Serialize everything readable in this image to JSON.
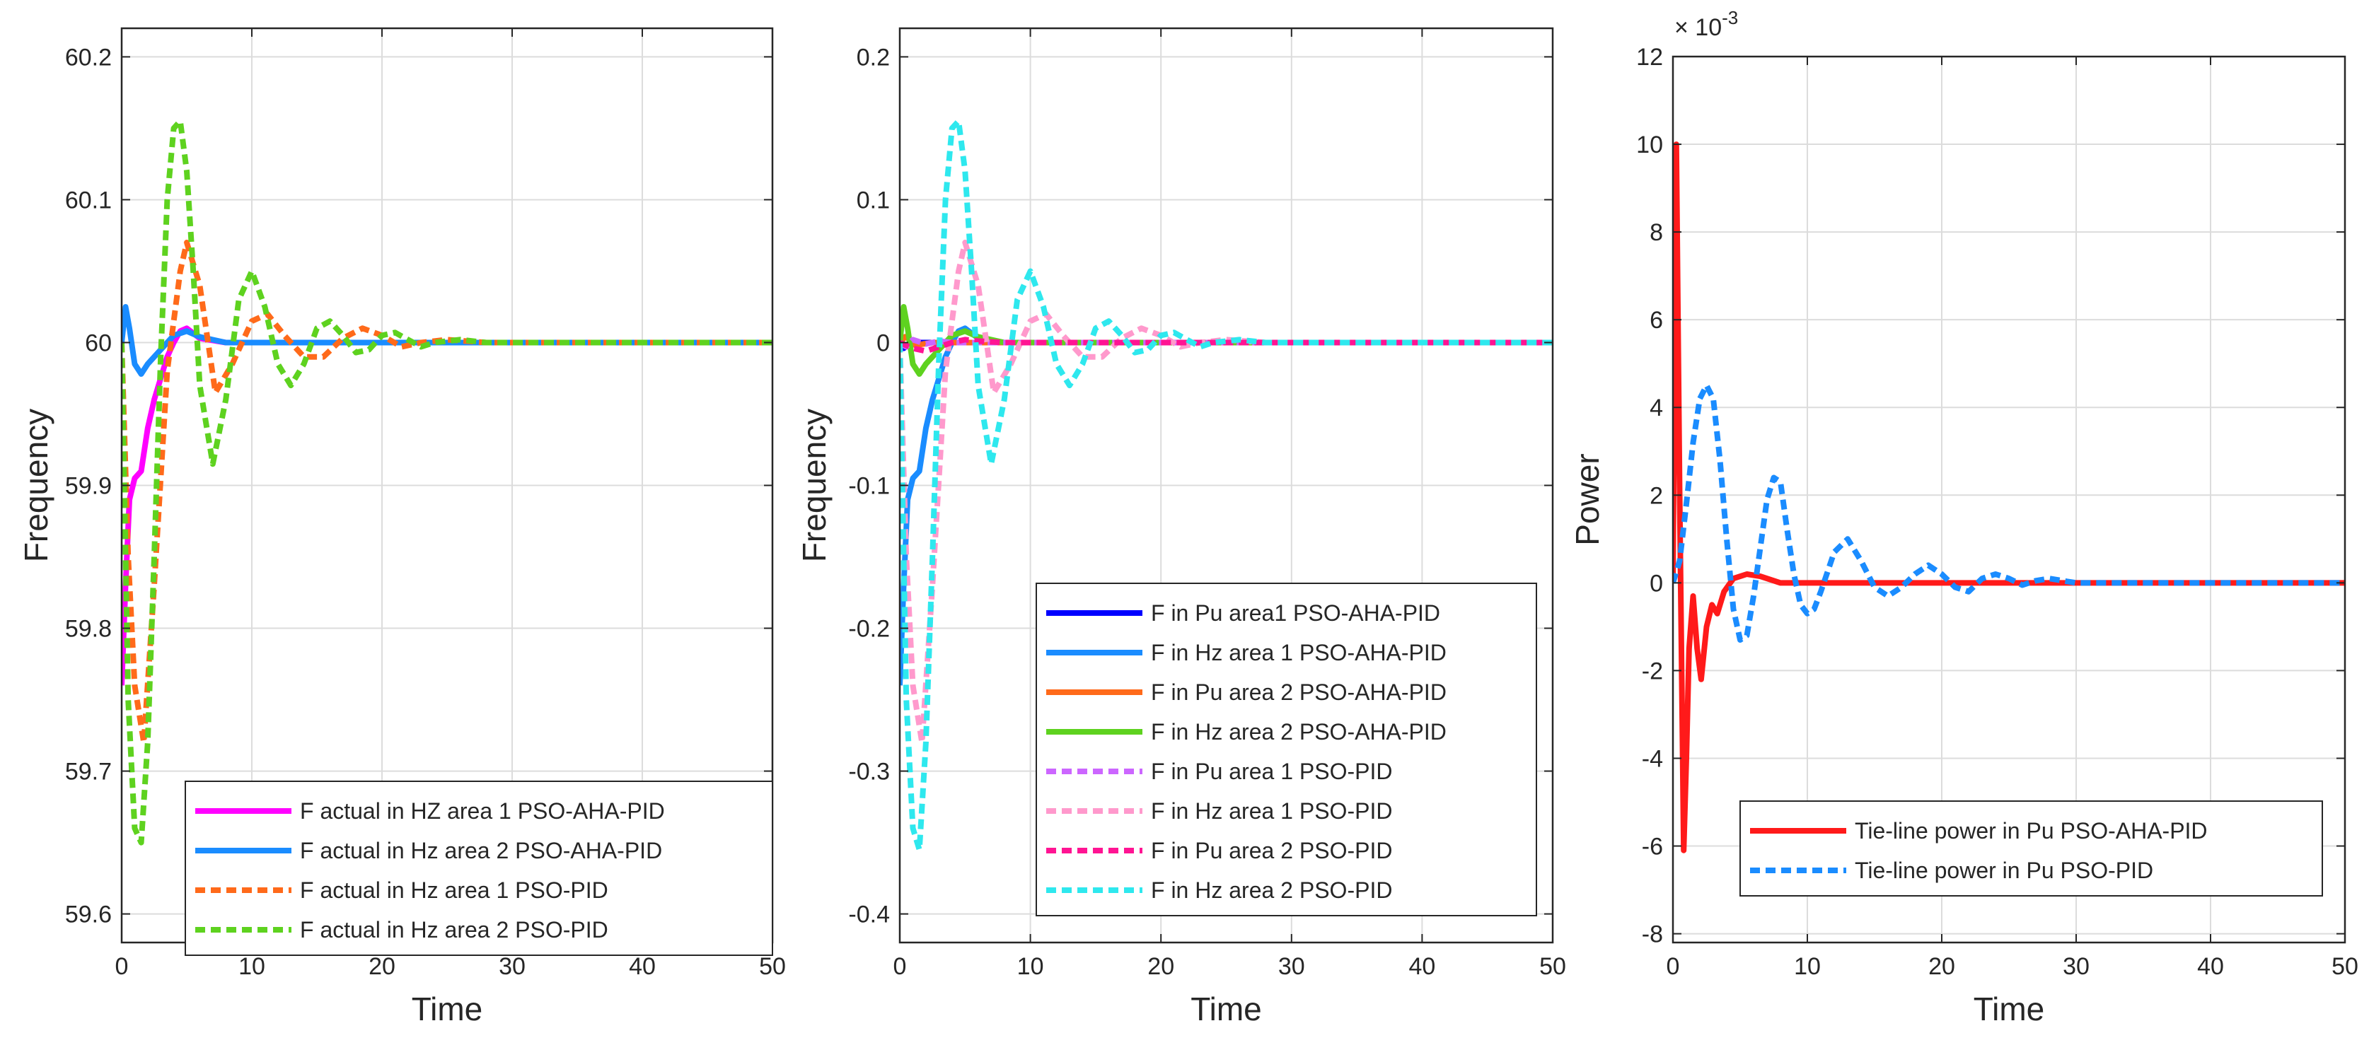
{
  "chart_data": [
    {
      "type": "line",
      "xlabel": "Time",
      "ylabel": "Frequency",
      "xlim": [
        0,
        50
      ],
      "ylim": [
        59.58,
        60.22
      ],
      "xticks": [
        0,
        10,
        20,
        30,
        40,
        50
      ],
      "yticks": [
        59.6,
        59.7,
        59.8,
        59.9,
        60,
        60.1,
        60.2
      ],
      "ytick_labels": [
        "59.6",
        "59.7",
        "59.8",
        "59.9",
        "60",
        "60.1",
        "60.2"
      ],
      "grid": true,
      "legend_position": "bottom-right",
      "series": [
        {
          "name": "F actual in HZ area 1 PSO-AHA-PID",
          "color": "#ff00ff",
          "style": "solid",
          "x": [
            0,
            0.3,
            0.6,
            1.0,
            1.5,
            2.0,
            2.5,
            3.0,
            3.5,
            4.0,
            4.5,
            5.0,
            6.0,
            8.0,
            10,
            15,
            50
          ],
          "y": [
            59.76,
            59.83,
            59.89,
            59.905,
            59.91,
            59.94,
            59.96,
            59.975,
            59.99,
            60.0,
            60.008,
            60.01,
            60.003,
            60.0,
            60.0,
            60.0,
            60.0
          ]
        },
        {
          "name": "F actual in Hz area 2 PSO-AHA-PID",
          "color": "#1a8cff",
          "style": "solid",
          "x": [
            0,
            0.3,
            0.6,
            1.0,
            1.5,
            2.0,
            2.5,
            3.0,
            3.5,
            4.0,
            5.0,
            6.0,
            8.0,
            10,
            50
          ],
          "y": [
            60.0,
            60.025,
            60.01,
            59.985,
            59.978,
            59.985,
            59.99,
            59.995,
            60.0,
            60.005,
            60.008,
            60.004,
            60.0,
            60.0,
            60.0
          ]
        },
        {
          "name": "F actual in Hz area 1 PSO-PID",
          "color": "#ff6a1a",
          "style": "dashed",
          "x": [
            0,
            0.5,
            1.0,
            1.7,
            2.5,
            3.5,
            4.5,
            5.0,
            6.0,
            7.2,
            8.5,
            10.0,
            11.2,
            12.5,
            14.0,
            15.5,
            17.0,
            18.5,
            20.0,
            21.5,
            23.0,
            25.0,
            28.0,
            32.0,
            50
          ],
          "y": [
            60.0,
            59.85,
            59.76,
            59.72,
            59.83,
            59.98,
            60.05,
            60.07,
            60.04,
            59.965,
            59.985,
            60.015,
            60.02,
            60.005,
            59.99,
            59.99,
            60.003,
            60.01,
            60.005,
            59.997,
            60.0,
            60.002,
            60.0,
            60.0,
            60.0
          ]
        },
        {
          "name": "F actual in Hz area 2 PSO-PID",
          "color": "#5ed21f",
          "style": "dashed",
          "x": [
            0,
            0.5,
            1.0,
            1.5,
            2.0,
            2.5,
            3.0,
            3.5,
            4.0,
            4.5,
            5.0,
            5.5,
            6.0,
            7.0,
            8.0,
            9.0,
            10.0,
            11.0,
            12.0,
            13.0,
            14.0,
            15.0,
            16.0,
            17.0,
            18.0,
            19.0,
            20.0,
            21.0,
            22.0,
            23.0,
            24.0,
            26.0,
            28.0,
            31.0,
            50
          ],
          "y": [
            60.0,
            59.75,
            59.66,
            59.65,
            59.72,
            59.85,
            59.99,
            60.1,
            60.15,
            60.155,
            60.12,
            60.05,
            59.97,
            59.915,
            59.96,
            60.03,
            60.05,
            60.025,
            59.985,
            59.97,
            59.985,
            60.01,
            60.015,
            60.005,
            59.993,
            59.995,
            60.005,
            60.007,
            60.002,
            59.997,
            60.0,
            60.002,
            60.0,
            60.0,
            60.0
          ]
        }
      ]
    },
    {
      "type": "line",
      "xlabel": "Time",
      "ylabel": "Frequency",
      "xlim": [
        0,
        50
      ],
      "ylim": [
        -0.42,
        0.22
      ],
      "xticks": [
        0,
        10,
        20,
        30,
        40,
        50
      ],
      "yticks": [
        -0.4,
        -0.3,
        -0.2,
        -0.1,
        0,
        0.1,
        0.2
      ],
      "ytick_labels": [
        "-0.4",
        "-0.3",
        "-0.2",
        "-0.1",
        "0",
        "0.1",
        "0.2"
      ],
      "grid": true,
      "legend_position": "bottom-right",
      "series": [
        {
          "name": "F in Pu area1 PSO-AHA-PID",
          "color": "#0000ff",
          "style": "solid",
          "x": [
            0,
            0.3,
            0.6,
            1.0,
            2.0,
            3.0,
            4.0,
            50
          ],
          "y": [
            0,
            -0.004,
            -0.002,
            0.0,
            0.0,
            0.0,
            0.0,
            0
          ]
        },
        {
          "name": "F in Hz area 1 PSO-AHA-PID",
          "color": "#1a8cff",
          "style": "solid",
          "x": [
            0,
            0.3,
            0.6,
            1.0,
            1.5,
            2.0,
            2.5,
            3.0,
            3.5,
            4.0,
            4.5,
            5.0,
            6.0,
            8.0,
            10,
            15,
            50
          ],
          "y": [
            -0.24,
            -0.17,
            -0.11,
            -0.095,
            -0.09,
            -0.06,
            -0.04,
            -0.025,
            -0.01,
            0.0,
            0.008,
            0.01,
            0.003,
            0.0,
            0.0,
            0.0,
            0.0
          ]
        },
        {
          "name": "F in Pu area 2 PSO-AHA-PID",
          "color": "#ff6a1a",
          "style": "solid",
          "x": [
            0,
            0.4,
            0.8,
            1.2,
            1.8,
            2.5,
            3.5,
            50
          ],
          "y": [
            0,
            0.004,
            0.002,
            -0.002,
            -0.001,
            0.0,
            0.0,
            0
          ]
        },
        {
          "name": "F in Hz area 2 PSO-AHA-PID",
          "color": "#5ed21f",
          "style": "solid",
          "x": [
            0,
            0.3,
            0.6,
            1.0,
            1.5,
            2.0,
            2.5,
            3.0,
            3.5,
            4.0,
            5.0,
            6.0,
            8.0,
            10,
            50
          ],
          "y": [
            0.0,
            0.025,
            0.01,
            -0.015,
            -0.022,
            -0.015,
            -0.01,
            -0.005,
            0.0,
            0.005,
            0.008,
            0.004,
            0.0,
            0.0,
            0.0
          ]
        },
        {
          "name": "F in Pu  area 1 PSO-PID",
          "color": "#cc66ff",
          "style": "dashed",
          "x": [
            0,
            0.5,
            1.0,
            2.0,
            3.0,
            4.0,
            5.0,
            50
          ],
          "y": [
            0,
            -0.003,
            0.002,
            -0.001,
            0.001,
            0.0,
            0.0,
            0
          ]
        },
        {
          "name": "F in Hz  area 1 PSO-PID",
          "color": "#ff99cc",
          "style": "dashed",
          "x": [
            0,
            0.5,
            1.0,
            1.7,
            2.5,
            3.5,
            4.5,
            5.0,
            6.0,
            7.2,
            8.5,
            10.0,
            11.2,
            12.5,
            14.0,
            15.5,
            17.0,
            18.5,
            20.0,
            21.5,
            23.0,
            25.0,
            28.0,
            32.0,
            50
          ],
          "y": [
            0.0,
            -0.15,
            -0.24,
            -0.28,
            -0.17,
            -0.02,
            0.05,
            0.07,
            0.04,
            -0.035,
            -0.015,
            0.015,
            0.02,
            0.005,
            -0.01,
            -0.01,
            0.003,
            0.01,
            0.005,
            -0.003,
            0.0,
            0.002,
            0.0,
            0.0,
            0.0
          ]
        },
        {
          "name": "F in Pu area 2 PSO-PID",
          "color": "#ff1493",
          "style": "dashed",
          "x": [
            0,
            1.0,
            2.0,
            3.0,
            4.0,
            5.0,
            6.0,
            8.0,
            10,
            50
          ],
          "y": [
            0,
            -0.004,
            -0.006,
            -0.003,
            0.0,
            0.002,
            0.001,
            0.0,
            0.0,
            0
          ]
        },
        {
          "name": "F in Hz area 2 PSO-PID",
          "color": "#2ee8ee",
          "style": "dashed",
          "x": [
            0,
            0.5,
            1.0,
            1.5,
            2.0,
            2.5,
            3.0,
            3.5,
            4.0,
            4.5,
            5.0,
            5.5,
            6.0,
            7.0,
            8.0,
            9.0,
            10.0,
            11.0,
            12.0,
            13.0,
            14.0,
            15.0,
            16.0,
            17.0,
            18.0,
            19.0,
            20.0,
            21.0,
            22.0,
            23.0,
            24.0,
            26.0,
            28.0,
            31.0,
            50
          ],
          "y": [
            0.0,
            -0.25,
            -0.34,
            -0.355,
            -0.28,
            -0.15,
            -0.01,
            0.1,
            0.15,
            0.155,
            0.12,
            0.05,
            -0.03,
            -0.085,
            -0.04,
            0.03,
            0.05,
            0.025,
            -0.015,
            -0.03,
            -0.015,
            0.01,
            0.015,
            0.005,
            -0.007,
            -0.005,
            0.005,
            0.007,
            0.002,
            -0.003,
            0.0,
            0.002,
            0.0,
            0.0,
            0.0
          ]
        }
      ]
    },
    {
      "type": "line",
      "xlabel": "Time",
      "ylabel": "Power",
      "y_exponent_label": "× 10",
      "y_exponent": "-3",
      "xlim": [
        0,
        50
      ],
      "ylim": [
        -8.2,
        12
      ],
      "xticks": [
        0,
        10,
        20,
        30,
        40,
        50
      ],
      "yticks": [
        -8,
        -6,
        -4,
        -2,
        0,
        2,
        4,
        6,
        8,
        10,
        12
      ],
      "ytick_labels": [
        "-8",
        "-6",
        "-4",
        "-2",
        "0",
        "2",
        "4",
        "6",
        "8",
        "10",
        "12"
      ],
      "grid": true,
      "legend_position": "bottom-right",
      "series": [
        {
          "name": "Tie-line power  in Pu PSO-AHA-PID",
          "color": "#ff1a1a",
          "style": "solid",
          "x": [
            0,
            0.25,
            0.5,
            0.8,
            1.0,
            1.2,
            1.5,
            1.8,
            2.1,
            2.5,
            2.9,
            3.3,
            3.8,
            4.5,
            5.5,
            6.5,
            8.0,
            10,
            12,
            50
          ],
          "y": [
            0,
            10,
            2,
            -6.1,
            -4.0,
            -1.5,
            -0.3,
            -1.5,
            -2.2,
            -1.0,
            -0.5,
            -0.7,
            -0.2,
            0.1,
            0.2,
            0.15,
            0.0,
            0.0,
            0.0,
            0
          ]
        },
        {
          "name": "Tie-line power in Pu PSO-PID",
          "color": "#1a8cff",
          "style": "dashed",
          "x": [
            0,
            0.5,
            1.0,
            1.5,
            2.0,
            2.5,
            3.0,
            3.5,
            4.0,
            4.5,
            5.0,
            5.5,
            6.0,
            6.5,
            7.0,
            7.5,
            8.0,
            8.5,
            9.0,
            9.5,
            10.0,
            10.5,
            11.0,
            12.0,
            13.0,
            14.0,
            15.0,
            16.0,
            17.0,
            18.0,
            19.0,
            20.0,
            21.0,
            22.0,
            23.0,
            24.0,
            25.0,
            26.0,
            27.0,
            28.0,
            29.0,
            30.0,
            32.0,
            50
          ],
          "y": [
            0,
            0.5,
            1.8,
            3.2,
            4.2,
            4.5,
            4.2,
            2.8,
            1.0,
            -0.6,
            -1.3,
            -1.2,
            -0.3,
            0.8,
            1.9,
            2.4,
            2.3,
            1.2,
            0.2,
            -0.5,
            -0.7,
            -0.6,
            -0.2,
            0.7,
            1.0,
            0.5,
            -0.1,
            -0.3,
            -0.1,
            0.2,
            0.4,
            0.2,
            -0.1,
            -0.2,
            0.1,
            0.2,
            0.1,
            -0.05,
            0.05,
            0.1,
            0.05,
            0.0,
            0.0,
            0.0
          ]
        }
      ]
    }
  ]
}
